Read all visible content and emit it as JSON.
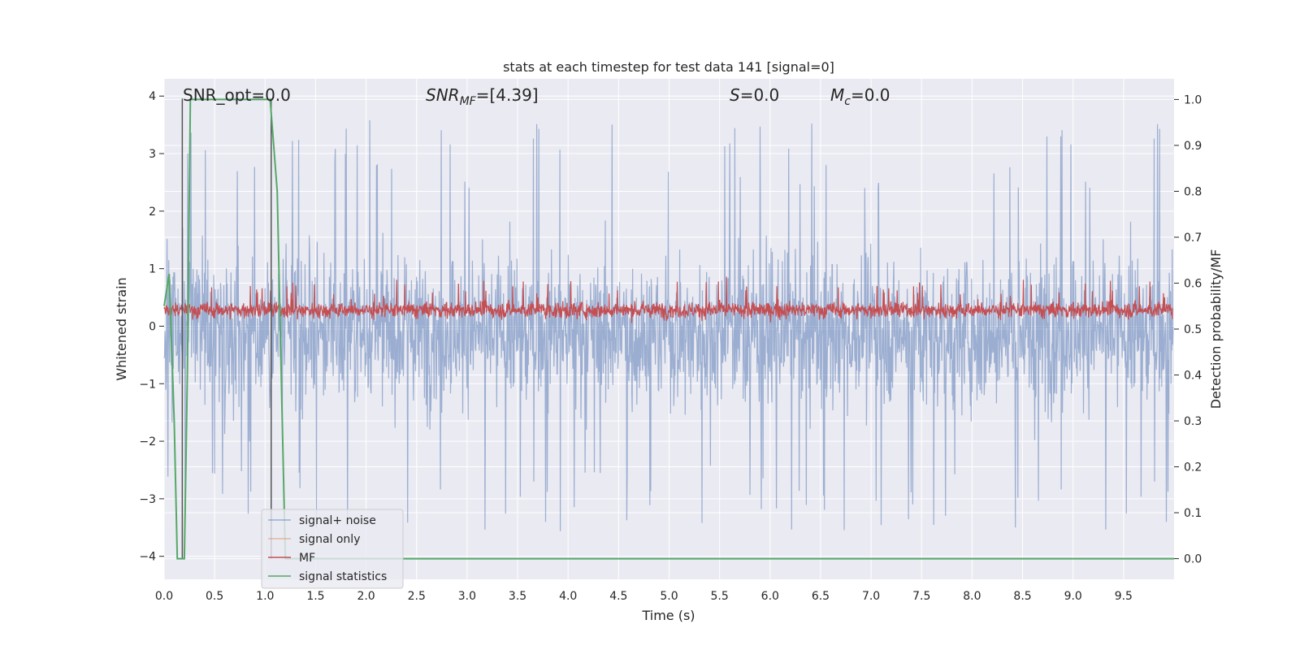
{
  "chart_data": {
    "type": "line",
    "title": "stats at each timestep for test data 141 [signal=0]",
    "xlabel": "Time (s)",
    "ylabel": "Whitened strain",
    "y2label": "Detection probability/MF",
    "xlim": [
      0.0,
      10.0
    ],
    "ylim": [
      -4.4,
      4.3
    ],
    "y2lim": [
      -0.045,
      1.045
    ],
    "x_ticks": [
      "0.0",
      "0.5",
      "1.0",
      "1.5",
      "2.0",
      "2.5",
      "3.0",
      "3.5",
      "4.0",
      "4.5",
      "5.0",
      "5.5",
      "6.0",
      "6.5",
      "7.0",
      "7.5",
      "8.0",
      "8.5",
      "9.0",
      "9.5"
    ],
    "y_ticks": [
      "4",
      "3",
      "2",
      "1",
      "0",
      "−1",
      "−2",
      "−3",
      "−4"
    ],
    "y2_ticks": [
      "1.0",
      "0.9",
      "0.8",
      "0.7",
      "0.6",
      "0.5",
      "0.4",
      "0.3",
      "0.2",
      "0.1",
      "0.0"
    ],
    "grid": true,
    "legend_position": "lower-left",
    "colors": {
      "noise": "#4c72b0",
      "signal_only": "#dd8452",
      "mf": "#c44e52",
      "statistics": "#55a868",
      "vline": "#555555",
      "panel_bg": "#eaeaf2",
      "grid": "#ffffff"
    },
    "annotations": {
      "snr_opt": "SNR_opt=0.0",
      "snr_mf_prefix": "SNR",
      "snr_mf_sub": "MF",
      "snr_mf_value": "=[4.39]",
      "s_symbol": "S",
      "s_value": "=0.0",
      "mc_symbol": "M",
      "mc_sub": "c",
      "mc_value": "=0.0"
    },
    "series": [
      {
        "name": "signal+ noise",
        "axis": "left",
        "description_range": [
          -4.0,
          3.9
        ]
      },
      {
        "name": "signal only",
        "axis": "left",
        "values": []
      },
      {
        "name": "MF",
        "axis": "left",
        "description_range": [
          0.0,
          1.0
        ]
      },
      {
        "name": "signal statistics",
        "axis": "right",
        "x": [
          0.0,
          0.05,
          0.1,
          0.13,
          0.16,
          0.18,
          0.2,
          0.23,
          0.26,
          0.3,
          0.5,
          0.8,
          1.05,
          1.12,
          1.17,
          1.2,
          1.25,
          2.0,
          3.0,
          4.0,
          5.0,
          6.0,
          7.0,
          8.0,
          9.0,
          10.0
        ],
        "values": [
          0.55,
          0.62,
          0.3,
          0.0,
          0.0,
          0.0,
          0.0,
          0.4,
          1.0,
          1.0,
          1.0,
          1.0,
          1.0,
          0.8,
          0.3,
          0.0,
          0.0,
          0.0,
          0.0,
          0.0,
          0.0,
          0.0,
          0.0,
          0.0,
          0.0,
          0.0
        ]
      }
    ],
    "vlines": [
      0.18,
      1.06
    ]
  }
}
